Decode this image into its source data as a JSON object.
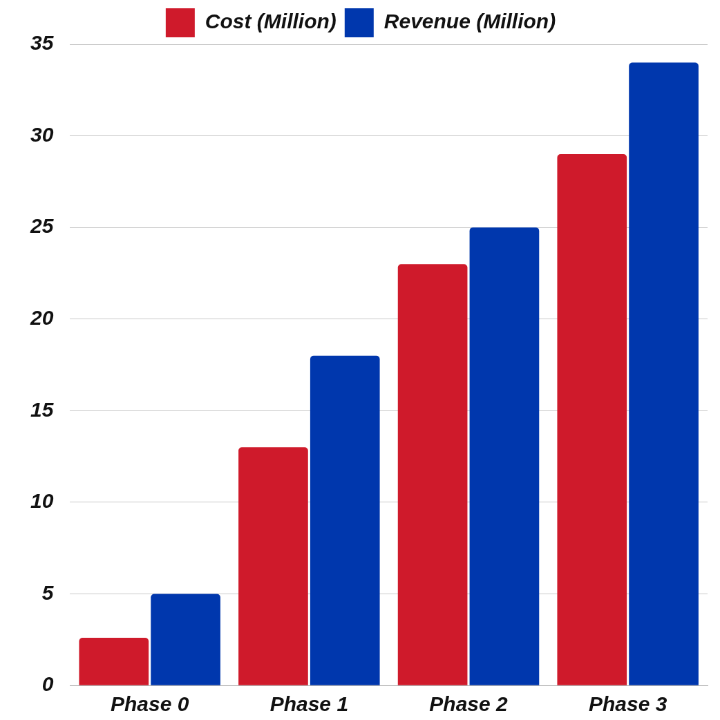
{
  "chart_data": {
    "type": "bar",
    "categories": [
      "Phase 0",
      "Phase 1",
      "Phase 2",
      "Phase 3"
    ],
    "series": [
      {
        "name": "Cost (Million)",
        "color": "#cf1a2b",
        "values": [
          2.6,
          13,
          23,
          29
        ]
      },
      {
        "name": "Revenue (Million)",
        "color": "#0037ad",
        "values": [
          5,
          18,
          25,
          34
        ]
      }
    ],
    "ylim": [
      0,
      35
    ],
    "yticks": [
      0,
      5,
      10,
      15,
      20,
      25,
      30,
      35
    ],
    "grid": "y",
    "legend": "top"
  }
}
